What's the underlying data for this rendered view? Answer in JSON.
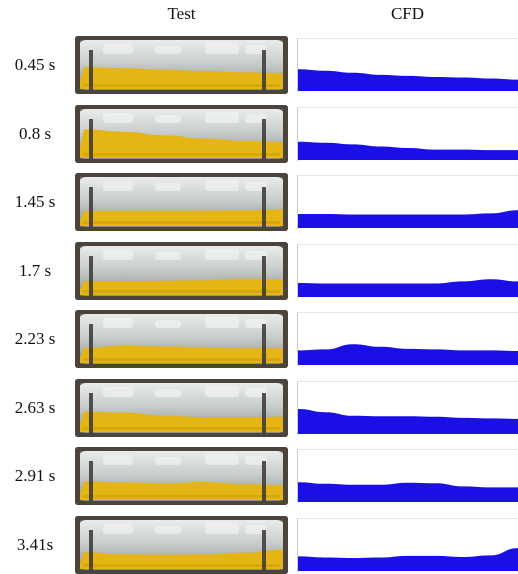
{
  "headers": {
    "test": "Test",
    "cfd": "CFD"
  },
  "rows": [
    {
      "time": "0.45 s",
      "test_fill": [
        0.45,
        0.43,
        0.4,
        0.37,
        0.34,
        0.32
      ],
      "cfd_fill": [
        0.42,
        0.39,
        0.35,
        0.31,
        0.29,
        0.27,
        0.26,
        0.24,
        0.22
      ]
    },
    {
      "time": "0.8 s",
      "test_fill": [
        0.6,
        0.55,
        0.47,
        0.4,
        0.35,
        0.33
      ],
      "cfd_fill": [
        0.35,
        0.33,
        0.3,
        0.26,
        0.23,
        0.2,
        0.2,
        0.19,
        0.19
      ]
    },
    {
      "time": "1.45 s",
      "test_fill": [
        0.3,
        0.31,
        0.31,
        0.31,
        0.32,
        0.34
      ],
      "cfd_fill": [
        0.27,
        0.27,
        0.26,
        0.26,
        0.26,
        0.26,
        0.26,
        0.28,
        0.34
      ]
    },
    {
      "time": "1.7 s",
      "test_fill": [
        0.28,
        0.28,
        0.29,
        0.3,
        0.33,
        0.31
      ],
      "cfd_fill": [
        0.27,
        0.26,
        0.26,
        0.26,
        0.26,
        0.26,
        0.3,
        0.34,
        0.3
      ]
    },
    {
      "time": "2.23 s",
      "test_fill": [
        0.3,
        0.36,
        0.34,
        0.31,
        0.3,
        0.3
      ],
      "cfd_fill": [
        0.28,
        0.3,
        0.4,
        0.35,
        0.31,
        0.3,
        0.28,
        0.28,
        0.27
      ]
    },
    {
      "time": "2.63 s",
      "test_fill": [
        0.42,
        0.4,
        0.33,
        0.3,
        0.3,
        0.31
      ],
      "cfd_fill": [
        0.48,
        0.42,
        0.35,
        0.34,
        0.34,
        0.33,
        0.31,
        0.3,
        0.29
      ]
    },
    {
      "time": "2.91 s",
      "test_fill": [
        0.38,
        0.36,
        0.34,
        0.37,
        0.32,
        0.3
      ],
      "cfd_fill": [
        0.38,
        0.35,
        0.33,
        0.33,
        0.37,
        0.36,
        0.3,
        0.28,
        0.28
      ]
    },
    {
      "time": "3.41s",
      "test_fill": [
        0.34,
        0.3,
        0.29,
        0.3,
        0.33,
        0.4
      ],
      "cfd_fill": [
        0.28,
        0.26,
        0.25,
        0.26,
        0.29,
        0.29,
        0.27,
        0.3,
        0.44
      ]
    }
  ],
  "colors": {
    "cfd_liquid": "#1a10e6",
    "test_liquid": "#e4b514",
    "tank_glass": "#c9cfce",
    "tank_frame": "#3b3530"
  }
}
